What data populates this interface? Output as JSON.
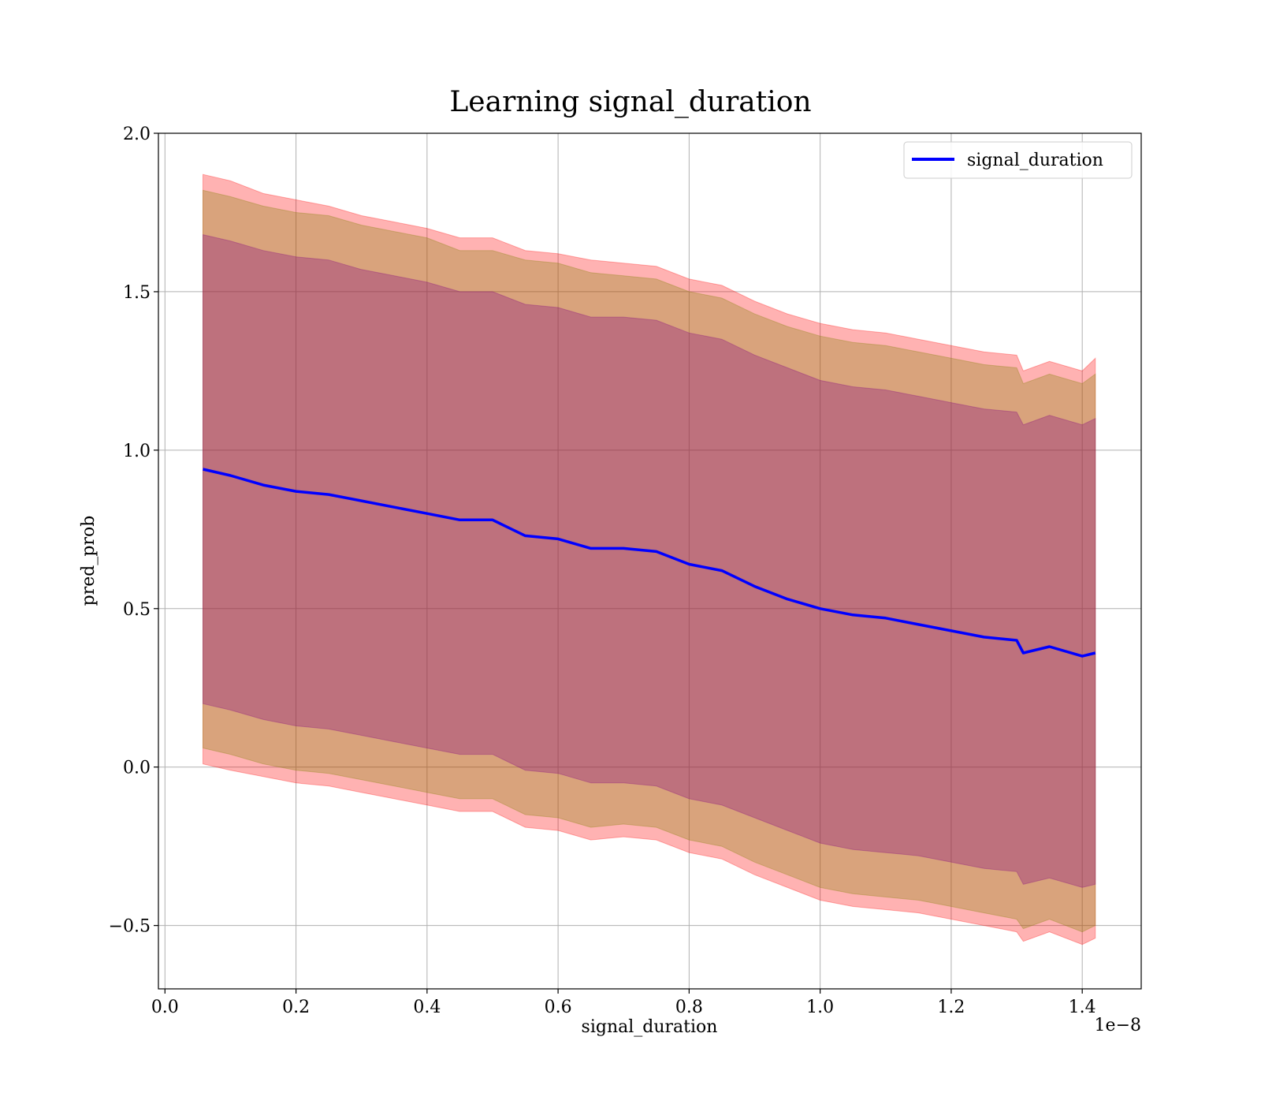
{
  "chart_data": {
    "type": "line",
    "title": "Learning signal_duration",
    "xlabel": "signal_duration",
    "ylabel": "pred_prob",
    "x_offset_label": "1e−8",
    "xlim": [
      -0.01,
      1.49
    ],
    "ylim": [
      -0.7,
      2.0
    ],
    "x_ticks": [
      0.0,
      0.2,
      0.4,
      0.6,
      0.8,
      1.0,
      1.2,
      1.4
    ],
    "x_tick_labels": [
      "0.0",
      "0.2",
      "0.4",
      "0.6",
      "0.8",
      "1.0",
      "1.2",
      "1.4"
    ],
    "y_ticks": [
      -0.5,
      0.0,
      0.5,
      1.0,
      1.5,
      2.0
    ],
    "y_tick_labels": [
      "−0.5",
      "0.0",
      "0.5",
      "1.0",
      "1.5",
      "2.0"
    ],
    "grid": true,
    "legend_position": "top-right",
    "series": [
      {
        "name": "signal_duration",
        "color": "#0000ff",
        "x": [
          0.058,
          0.1,
          0.15,
          0.2,
          0.25,
          0.3,
          0.35,
          0.4,
          0.45,
          0.5,
          0.55,
          0.6,
          0.65,
          0.7,
          0.75,
          0.8,
          0.85,
          0.9,
          0.95,
          1.0,
          1.05,
          1.1,
          1.15,
          1.2,
          1.25,
          1.3,
          1.31,
          1.35,
          1.4,
          1.42
        ],
        "y": [
          0.94,
          0.92,
          0.89,
          0.87,
          0.86,
          0.84,
          0.82,
          0.8,
          0.78,
          0.78,
          0.73,
          0.72,
          0.69,
          0.69,
          0.68,
          0.64,
          0.62,
          0.57,
          0.53,
          0.5,
          0.48,
          0.47,
          0.45,
          0.43,
          0.41,
          0.4,
          0.36,
          0.38,
          0.35,
          0.36
        ]
      }
    ],
    "bands": [
      {
        "color": "#ff0000",
        "opacity": 0.3,
        "x": [
          0.058,
          0.1,
          0.15,
          0.2,
          0.25,
          0.3,
          0.35,
          0.4,
          0.45,
          0.5,
          0.55,
          0.6,
          0.65,
          0.7,
          0.75,
          0.8,
          0.85,
          0.9,
          0.95,
          1.0,
          1.05,
          1.1,
          1.15,
          1.2,
          1.25,
          1.3,
          1.31,
          1.35,
          1.4,
          1.42
        ],
        "upper": [
          1.87,
          1.85,
          1.81,
          1.79,
          1.77,
          1.74,
          1.72,
          1.7,
          1.67,
          1.67,
          1.63,
          1.62,
          1.6,
          1.59,
          1.58,
          1.54,
          1.52,
          1.47,
          1.43,
          1.4,
          1.38,
          1.37,
          1.35,
          1.33,
          1.31,
          1.3,
          1.25,
          1.28,
          1.25,
          1.29
        ],
        "lower": [
          0.01,
          -0.01,
          -0.03,
          -0.05,
          -0.06,
          -0.08,
          -0.1,
          -0.12,
          -0.14,
          -0.14,
          -0.19,
          -0.2,
          -0.23,
          -0.22,
          -0.23,
          -0.27,
          -0.29,
          -0.34,
          -0.38,
          -0.42,
          -0.44,
          -0.45,
          -0.46,
          -0.48,
          -0.5,
          -0.52,
          -0.55,
          -0.52,
          -0.56,
          -0.54
        ]
      },
      {
        "color": "#808000",
        "opacity": 0.3,
        "x": [
          0.058,
          0.1,
          0.15,
          0.2,
          0.25,
          0.3,
          0.35,
          0.4,
          0.45,
          0.5,
          0.55,
          0.6,
          0.65,
          0.7,
          0.75,
          0.8,
          0.85,
          0.9,
          0.95,
          1.0,
          1.05,
          1.1,
          1.15,
          1.2,
          1.25,
          1.3,
          1.31,
          1.35,
          1.4,
          1.42
        ],
        "upper": [
          1.82,
          1.8,
          1.77,
          1.75,
          1.74,
          1.71,
          1.69,
          1.67,
          1.63,
          1.63,
          1.6,
          1.59,
          1.56,
          1.55,
          1.54,
          1.5,
          1.48,
          1.43,
          1.39,
          1.36,
          1.34,
          1.33,
          1.31,
          1.29,
          1.27,
          1.26,
          1.21,
          1.24,
          1.21,
          1.24
        ],
        "lower": [
          0.06,
          0.04,
          0.01,
          -0.01,
          -0.02,
          -0.04,
          -0.06,
          -0.08,
          -0.1,
          -0.1,
          -0.15,
          -0.16,
          -0.19,
          -0.18,
          -0.19,
          -0.23,
          -0.25,
          -0.3,
          -0.34,
          -0.38,
          -0.4,
          -0.41,
          -0.42,
          -0.44,
          -0.46,
          -0.48,
          -0.51,
          -0.48,
          -0.52,
          -0.5
        ]
      },
      {
        "color": "#800080",
        "opacity": 0.3,
        "x": [
          0.058,
          0.1,
          0.15,
          0.2,
          0.25,
          0.3,
          0.35,
          0.4,
          0.45,
          0.5,
          0.55,
          0.6,
          0.65,
          0.7,
          0.75,
          0.8,
          0.85,
          0.9,
          0.95,
          1.0,
          1.05,
          1.1,
          1.15,
          1.2,
          1.25,
          1.3,
          1.31,
          1.35,
          1.4,
          1.42
        ],
        "upper": [
          1.68,
          1.66,
          1.63,
          1.61,
          1.6,
          1.57,
          1.55,
          1.53,
          1.5,
          1.5,
          1.46,
          1.45,
          1.42,
          1.42,
          1.41,
          1.37,
          1.35,
          1.3,
          1.26,
          1.22,
          1.2,
          1.19,
          1.17,
          1.15,
          1.13,
          1.12,
          1.08,
          1.11,
          1.08,
          1.1
        ],
        "lower": [
          0.2,
          0.18,
          0.15,
          0.13,
          0.12,
          0.1,
          0.08,
          0.06,
          0.04,
          0.04,
          -0.01,
          -0.02,
          -0.05,
          -0.05,
          -0.06,
          -0.1,
          -0.12,
          -0.16,
          -0.2,
          -0.24,
          -0.26,
          -0.27,
          -0.28,
          -0.3,
          -0.32,
          -0.33,
          -0.37,
          -0.35,
          -0.38,
          -0.37
        ]
      }
    ]
  }
}
